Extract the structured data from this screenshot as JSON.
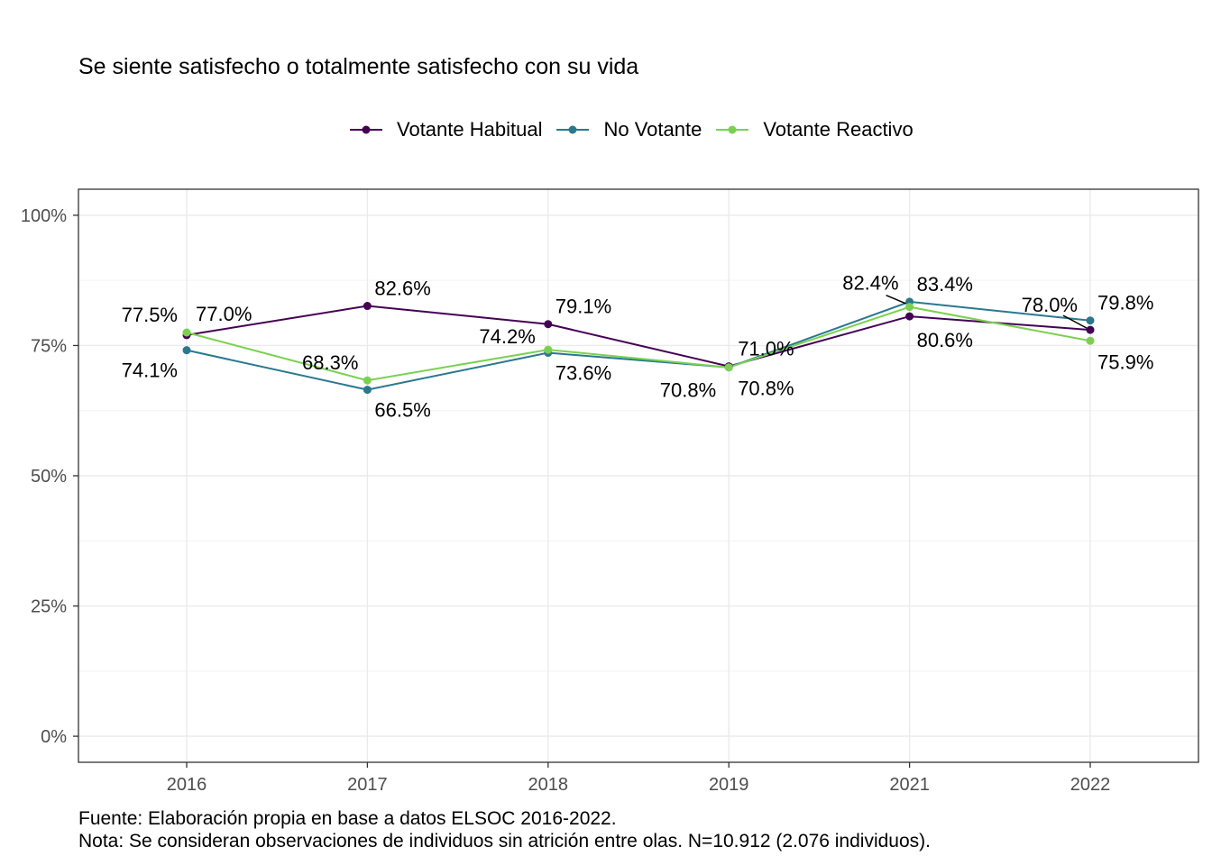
{
  "chart_data": {
    "type": "line",
    "title": "Se siente satisfecho o totalmente satisfecho con su vida",
    "xlabel": "",
    "ylabel": "",
    "categories": [
      "2016",
      "2017",
      "2018",
      "2019",
      "2021",
      "2022"
    ],
    "y_ticks": [
      "0%",
      "25%",
      "50%",
      "75%",
      "100%"
    ],
    "y_tick_values": [
      0,
      25,
      50,
      75,
      100
    ],
    "ylim": [
      -5,
      105
    ],
    "grid": true,
    "legend_position": "top",
    "series": [
      {
        "name": "Votante Habitual",
        "color": "#440154",
        "values": [
          77.0,
          82.6,
          79.1,
          71.0,
          80.6,
          78.0
        ],
        "labels": [
          "77.0%",
          "82.6%",
          "79.1%",
          "71.0%",
          "80.6%",
          "78.0%"
        ]
      },
      {
        "name": "No Votante",
        "color": "#2A788E",
        "values": [
          74.1,
          66.5,
          73.6,
          70.8,
          83.4,
          79.8
        ],
        "labels": [
          "74.1%",
          "66.5%",
          "73.6%",
          "70.8%",
          "83.4%",
          "79.8%"
        ]
      },
      {
        "name": "Votante Reactivo",
        "color": "#7AD151",
        "values": [
          77.5,
          68.3,
          74.2,
          70.8,
          82.4,
          75.9
        ],
        "labels": [
          "77.5%",
          "68.3%",
          "74.2%",
          "70.8%",
          "82.4%",
          "75.9%"
        ]
      }
    ]
  },
  "caption": {
    "line1": "Fuente: Elaboración propia en base a datos ELSOC 2016-2022.",
    "line2": "Nota: Se consideran observaciones de individuos sin atrición entre olas. N=10.912 (2.076 individuos)."
  }
}
